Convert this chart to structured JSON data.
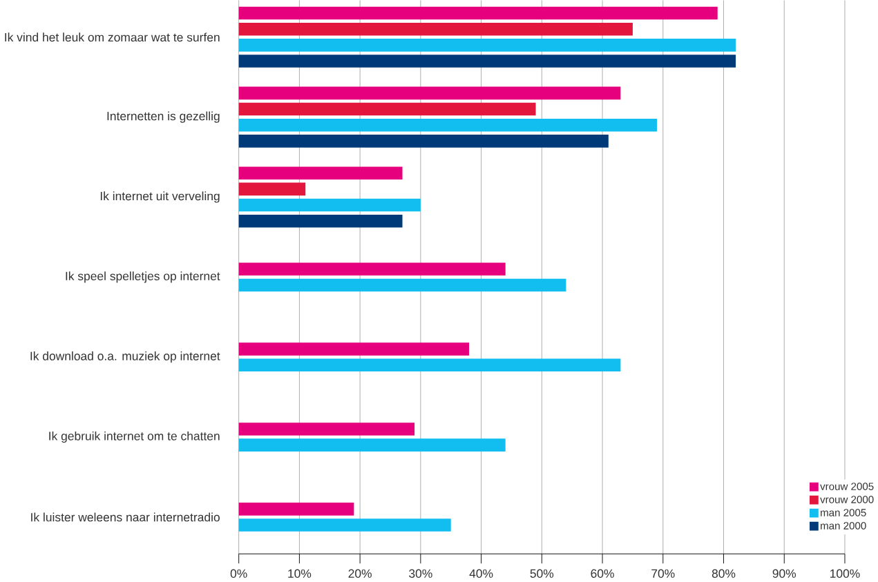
{
  "chart_data": {
    "type": "bar",
    "orientation": "horizontal",
    "categories": [
      "Ik vind het leuk om zomaar wat te surfen",
      "Internetten is gezellig",
      "Ik internet uit verveling",
      "Ik speel spelletjes op internet",
      "Ik download o.a. muziek op internet",
      "Ik gebruik internet om te chatten",
      "Ik luister weleens naar internetradio"
    ],
    "series": [
      {
        "name": "vrouw 2005",
        "color": "#e6007e",
        "values": [
          79,
          63,
          27,
          44,
          38,
          29,
          19
        ]
      },
      {
        "name": "vrouw 2000",
        "color": "#e3173e",
        "values": [
          65,
          49,
          11,
          null,
          null,
          null,
          null
        ]
      },
      {
        "name": "man 2005",
        "color": "#12bdef",
        "values": [
          82,
          69,
          30,
          54,
          63,
          44,
          35
        ]
      },
      {
        "name": "man 2000",
        "color": "#003a78",
        "values": [
          82,
          61,
          27,
          null,
          null,
          null,
          null
        ]
      }
    ],
    "xlim": [
      0,
      100
    ],
    "xticks": [
      {
        "value": 0,
        "label": "0%"
      },
      {
        "value": 10,
        "label": "10%"
      },
      {
        "value": 20,
        "label": "20%"
      },
      {
        "value": 30,
        "label": "30%"
      },
      {
        "value": 40,
        "label": "40%"
      },
      {
        "value": 50,
        "label": "50%"
      },
      {
        "value": 60,
        "label": "60%"
      },
      {
        "value": 70,
        "label": "70%"
      },
      {
        "value": 80,
        "label": "80%"
      },
      {
        "value": 90,
        "label": "90%"
      },
      {
        "value": 100,
        "label": "100%"
      }
    ],
    "grid": "x",
    "legend": "bottom right"
  }
}
